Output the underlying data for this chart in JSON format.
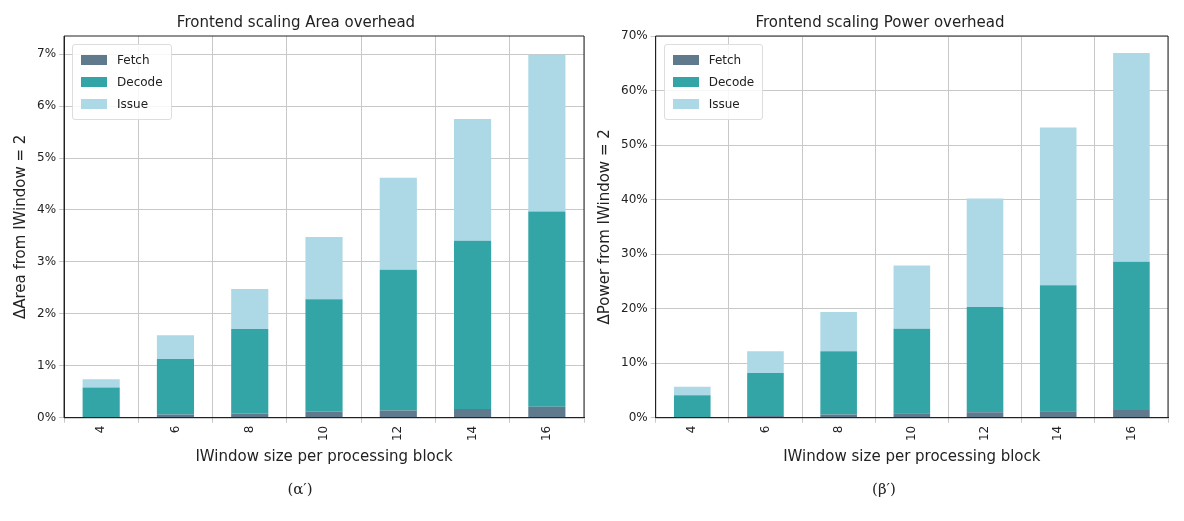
{
  "chart_data": [
    {
      "type": "bar",
      "title": "Frontend scaling Area overhead",
      "xlabel": "IWindow size per processing block",
      "ylabel": "ΔArea from IWindow = 2",
      "categories": [
        "4",
        "6",
        "8",
        "10",
        "12",
        "14",
        "16"
      ],
      "stacked": true,
      "series": [
        {
          "name": "Fetch",
          "color": "#5f7a8c",
          "values": [
            0.01,
            0.06,
            0.08,
            0.12,
            0.14,
            0.17,
            0.21
          ]
        },
        {
          "name": "Decode",
          "color": "#33a5a7",
          "values": [
            0.57,
            1.07,
            1.63,
            2.16,
            2.71,
            3.24,
            3.76
          ]
        },
        {
          "name": "Issue",
          "color": "#add8e6",
          "values": [
            0.16,
            0.46,
            0.77,
            1.2,
            1.77,
            2.34,
            3.02
          ]
        }
      ],
      "ylim": [
        0,
        7.35
      ],
      "yticks": [
        {
          "value": 0,
          "label": "0%"
        },
        {
          "value": 1,
          "label": "1%"
        },
        {
          "value": 2,
          "label": "2%"
        },
        {
          "value": 3,
          "label": "3%"
        },
        {
          "value": 4,
          "label": "4%"
        },
        {
          "value": 5,
          "label": "5%"
        },
        {
          "value": 6,
          "label": "6%"
        },
        {
          "value": 7,
          "label": "7%"
        }
      ],
      "grid": true,
      "legend": "top left",
      "annotations": [
        "(α′)"
      ]
    },
    {
      "type": "bar",
      "title": "Frontend scaling Power overhead",
      "xlabel": "IWindow size per processing block",
      "ylabel": "ΔPower from IWindow = 2",
      "categories": [
        "4",
        "6",
        "8",
        "10",
        "12",
        "14",
        "16"
      ],
      "stacked": true,
      "series": [
        {
          "name": "Fetch",
          "color": "#5f7a8c",
          "values": [
            0.1,
            0.3,
            0.6,
            0.8,
            1.0,
            1.2,
            1.4
          ]
        },
        {
          "name": "Decode",
          "color": "#33a5a7",
          "values": [
            4.0,
            7.9,
            11.6,
            15.5,
            19.3,
            23.1,
            27.2
          ]
        },
        {
          "name": "Issue",
          "color": "#add8e6",
          "values": [
            1.6,
            4.0,
            7.2,
            11.6,
            19.9,
            28.9,
            38.3
          ]
        }
      ],
      "ylim": [
        0,
        70
      ],
      "yticks": [
        {
          "value": 0,
          "label": "0%"
        },
        {
          "value": 10,
          "label": "10%"
        },
        {
          "value": 20,
          "label": "20%"
        },
        {
          "value": 30,
          "label": "30%"
        },
        {
          "value": 40,
          "label": "40%"
        },
        {
          "value": 50,
          "label": "50%"
        },
        {
          "value": 60,
          "label": "60%"
        },
        {
          "value": 70,
          "label": "70%"
        }
      ],
      "grid": true,
      "legend": "top left",
      "annotations": [
        "(β′)"
      ]
    }
  ]
}
